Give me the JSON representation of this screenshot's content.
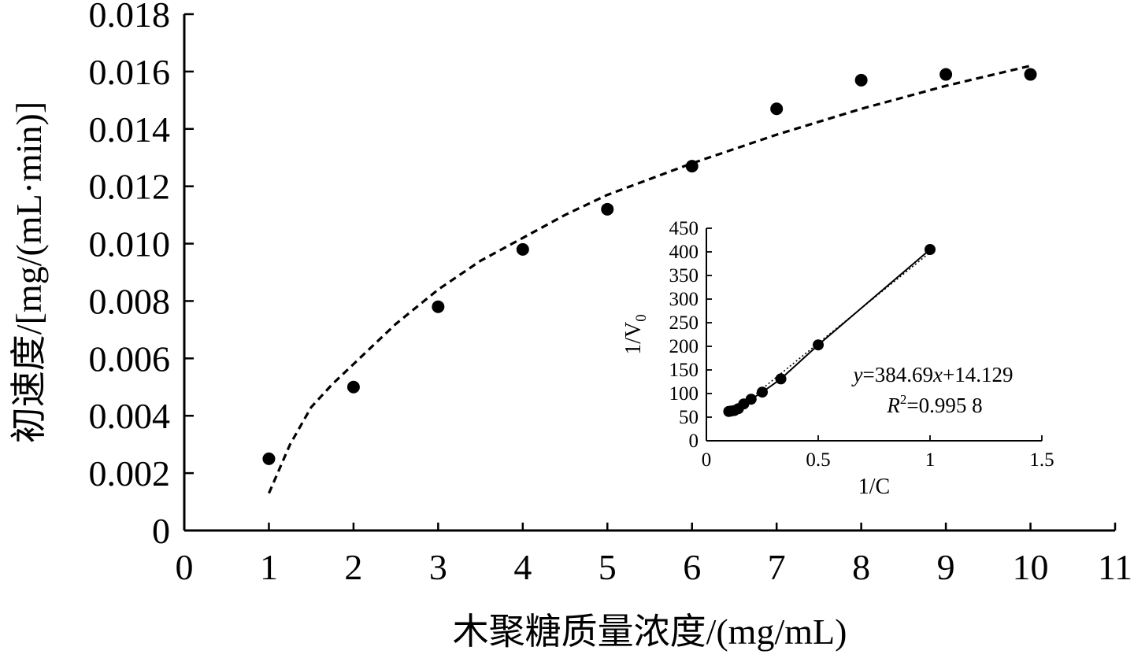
{
  "chart_data": [
    {
      "type": "scatter",
      "xlabel": "木聚糖质量浓度/(mg/mL)",
      "ylabel": "初速度/[mg/(mL·min)]",
      "xlim": [
        0,
        11
      ],
      "ylim": [
        0,
        0.018
      ],
      "x_ticks": [
        "0",
        "1",
        "2",
        "3",
        "4",
        "5",
        "6",
        "7",
        "8",
        "9",
        "10",
        "11"
      ],
      "y_ticks": [
        "0",
        "0.002",
        "0.004",
        "0.006",
        "0.008",
        "0.010",
        "0.012",
        "0.014",
        "0.016",
        "0.018"
      ],
      "grid": false,
      "series": [
        {
          "x": [
            1,
            2,
            3,
            4,
            5,
            6,
            7,
            8,
            9,
            10
          ],
          "y": [
            0.0025,
            0.005,
            0.0078,
            0.0098,
            0.0112,
            0.0127,
            0.0147,
            0.0157,
            0.0159,
            0.0159
          ]
        }
      ],
      "fit_curve": {
        "style": "dashed",
        "x": [
          1.0,
          1.25,
          1.5,
          1.75,
          2.0,
          2.5,
          3.0,
          3.5,
          4.0,
          4.5,
          5.0,
          6.0,
          7.0,
          8.0,
          9.0,
          10.0
        ],
        "y": [
          0.0013,
          0.003,
          0.0043,
          0.0051,
          0.0058,
          0.0072,
          0.0084,
          0.0094,
          0.0102,
          0.011,
          0.0117,
          0.0128,
          0.0138,
          0.0147,
          0.0155,
          0.0162
        ]
      }
    },
    {
      "type": "scatter",
      "xlabel": "1/C",
      "ylabel_main": "1/V",
      "ylabel_sub": "0",
      "xlim": [
        0,
        1.5
      ],
      "ylim": [
        0,
        450
      ],
      "x_ticks": [
        "0",
        "0.5",
        "1",
        "1.5"
      ],
      "y_ticks": [
        "0",
        "50",
        "100",
        "150",
        "200",
        "250",
        "300",
        "350",
        "400",
        "450"
      ],
      "grid": false,
      "series": [
        {
          "x": [
            0.1,
            0.111,
            0.125,
            0.143,
            0.167,
            0.2,
            0.25,
            0.333,
            0.5,
            1.0
          ],
          "y": [
            62,
            63,
            64,
            68,
            78,
            88,
            103,
            131,
            203,
            405
          ]
        }
      ],
      "fit_line": {
        "slope": 384.69,
        "intercept": 14.129,
        "x_range": [
          0.1,
          1.0
        ]
      },
      "equation": {
        "y_var": "y",
        "eq1": "=384.69",
        "x_var": "x",
        "eq2": "+14.129",
        "r_var": "R",
        "r_sup": "2",
        "r_value": "=0.995 8"
      }
    }
  ]
}
